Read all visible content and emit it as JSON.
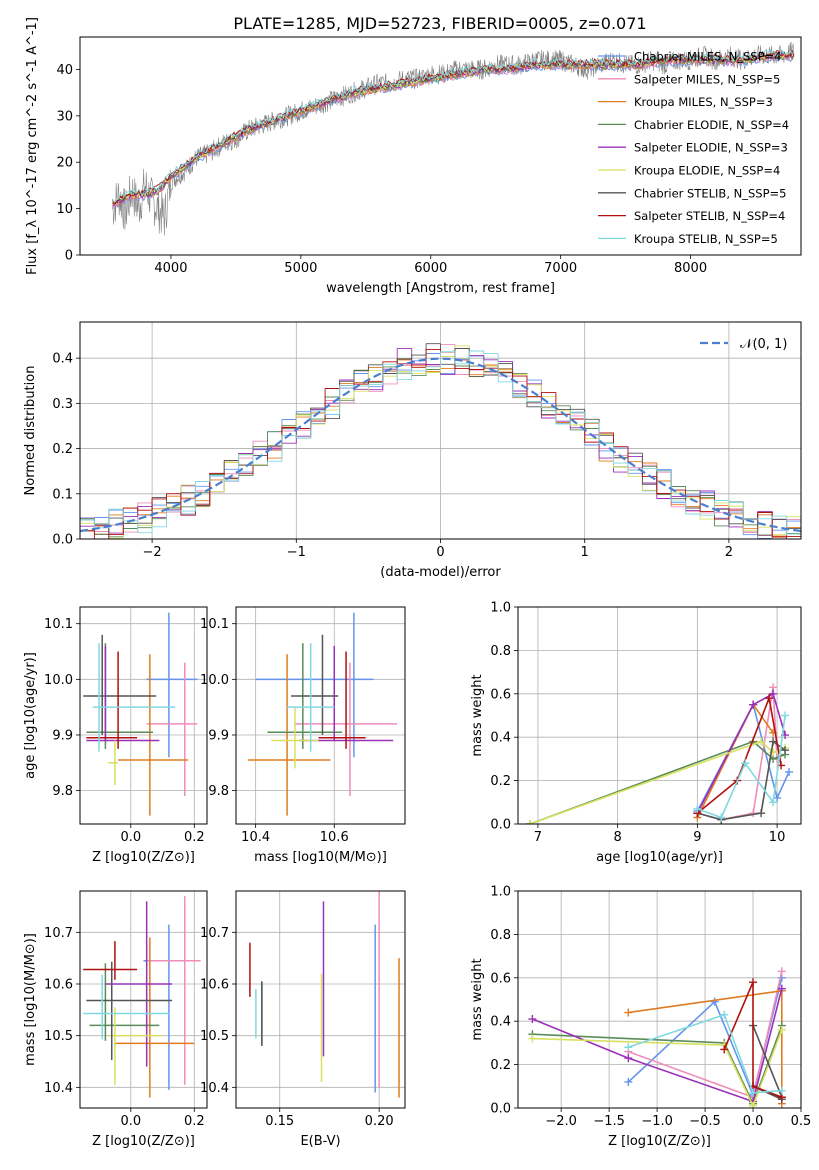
{
  "figure_title": "PLATE=1285, MJD=52723, FIBERID=0005, z=0.071",
  "series_colors": [
    "#6495ed",
    "#f08cba",
    "#e07b20",
    "#5a8c5a",
    "#9b30b8",
    "#d8e060",
    "#555555",
    "#b01010",
    "#80d8e0"
  ],
  "chart_data": [
    {
      "id": "spectrum",
      "type": "line",
      "xlabel": "wavelength [Angstrom, rest frame]",
      "ylabel": "Flux [f_λ 10^-17 erg cm^-2 s^-1 A^-1]",
      "xlim": [
        3300,
        8850
      ],
      "ylim": [
        0,
        47
      ],
      "xticks": [
        4000,
        5000,
        6000,
        7000,
        8000
      ],
      "yticks": [
        0,
        10,
        20,
        30,
        40
      ],
      "legend_position": "upper right",
      "legend": [
        {
          "label": "Chabrier MILES, N_SSP=4",
          "color": "#6495ed"
        },
        {
          "label": "Salpeter MILES, N_SSP=5",
          "color": "#f08cba"
        },
        {
          "label": "Kroupa MILES, N_SSP=3",
          "color": "#e07b20"
        },
        {
          "label": "Chabrier ELODIE, N_SSP=4",
          "color": "#5a8c5a"
        },
        {
          "label": "Salpeter ELODIE, N_SSP=3",
          "color": "#9b30b8"
        },
        {
          "label": "Kroupa ELODIE, N_SSP=4",
          "color": "#d8e060"
        },
        {
          "label": "Chabrier STELIB, N_SSP=5",
          "color": "#555555"
        },
        {
          "label": "Salpeter STELIB, N_SSP=4",
          "color": "#b01010"
        },
        {
          "label": "Kroupa STELIB, N_SSP=5",
          "color": "#80d8e0"
        }
      ],
      "observed": {
        "color": "#808080",
        "x": [
          3550,
          3600,
          3650,
          3700,
          3750,
          3800,
          3850,
          3900,
          3950,
          4000,
          4100,
          4200,
          4300,
          4400,
          4500,
          4600,
          4700,
          4800,
          4900,
          5000,
          5100,
          5200,
          5300,
          5400,
          5500,
          5600,
          5700,
          5800,
          5900,
          6000,
          6100,
          6200,
          6300,
          6400,
          6500,
          6600,
          6700,
          6800,
          6900,
          7000,
          7100,
          7200,
          7300,
          7400,
          7500,
          7600,
          7700,
          7800,
          7900,
          8000,
          8100,
          8200,
          8300,
          8400,
          8500,
          8600,
          8700,
          8800
        ],
        "y": [
          10,
          13,
          9,
          14,
          10,
          15,
          12,
          10,
          8,
          16,
          18,
          21,
          22,
          24,
          25,
          27,
          28,
          29,
          30,
          31,
          32,
          33,
          34,
          35,
          36,
          37,
          37,
          38,
          38,
          39,
          39,
          40,
          40,
          40,
          41,
          41,
          41,
          42,
          42,
          42,
          41,
          40,
          41,
          42,
          41,
          41,
          42,
          41,
          42,
          42,
          43,
          42,
          43,
          42,
          43,
          43,
          43,
          44
        ]
      },
      "model": {
        "x": [
          3550,
          3700,
          3800,
          3900,
          4000,
          4200,
          4400,
          4600,
          4800,
          5000,
          5200,
          5400,
          5600,
          5800,
          6000,
          6200,
          6400,
          6600,
          6800,
          7000,
          7200,
          7400,
          7600,
          7800,
          8000,
          8200,
          8400,
          8600,
          8800
        ],
        "y": [
          11,
          13,
          13,
          14,
          17,
          21,
          24,
          27,
          29,
          31,
          33,
          35,
          36,
          37,
          38,
          39,
          40,
          40,
          41,
          41,
          41,
          41,
          41,
          42,
          42,
          42,
          42,
          43,
          43
        ]
      }
    },
    {
      "id": "residual-histogram",
      "type": "line",
      "xlabel": "(data-model)/error",
      "ylabel": "Normed distribution",
      "xlim": [
        -2.5,
        2.5
      ],
      "ylim": [
        0,
        0.48
      ],
      "xticks": [
        -2,
        -1,
        0,
        1,
        2
      ],
      "yticks": [
        0.0,
        0.1,
        0.2,
        0.3,
        0.4
      ],
      "grid": true,
      "legend_position": "upper right",
      "gaussian_label": "𝒩(0, 1)",
      "gaussian_color": "#4a7fd0"
    },
    {
      "id": "age-vs-Z",
      "type": "scatter",
      "xlabel": "Z [log10(Z/Z⊙)]",
      "ylabel": "age  [log10(age/yr)]",
      "xlim": [
        -0.16,
        0.24
      ],
      "ylim": [
        9.74,
        10.13
      ],
      "xticks": [
        0.0,
        0.2
      ],
      "yticks": [
        9.8,
        9.9,
        10.0,
        10.1
      ],
      "grid": true,
      "points": [
        {
          "x": 0.12,
          "y": 10.0,
          "xerr": [
            0.07,
            0.09
          ],
          "yerr": [
            0.14,
            0.12
          ],
          "color": "#6495ed"
        },
        {
          "x": 0.17,
          "y": 9.92,
          "xerr": [
            0.12,
            0.04
          ],
          "yerr": [
            0.13,
            0.11
          ],
          "color": "#f08cba"
        },
        {
          "x": 0.06,
          "y": 9.855,
          "xerr": [
            0.1,
            0.12
          ],
          "yerr": [
            0.1,
            0.19
          ],
          "color": "#e07b20"
        },
        {
          "x": -0.08,
          "y": 9.905,
          "xerr": [
            0.06,
            0.15
          ],
          "yerr": [
            0.03,
            0.16
          ],
          "color": "#5a8c5a"
        },
        {
          "x": -0.08,
          "y": 9.89,
          "xerr": [
            0.06,
            0.17
          ],
          "yerr": [
            0.0,
            0.17
          ],
          "color": "#9b30b8"
        },
        {
          "x": -0.05,
          "y": 9.85,
          "xerr": [
            0.02,
            0.01
          ],
          "yerr": [
            0.04,
            0.04
          ],
          "color": "#d8e060"
        },
        {
          "x": -0.09,
          "y": 9.97,
          "xerr": [
            0.06,
            0.17
          ],
          "yerr": [
            0.07,
            0.11
          ],
          "color": "#555555"
        },
        {
          "x": -0.04,
          "y": 9.895,
          "xerr": [
            0.1,
            0.06
          ],
          "yerr": [
            0.02,
            0.155
          ],
          "color": "#b01010"
        },
        {
          "x": -0.1,
          "y": 9.95,
          "xerr": [
            0.02,
            0.24
          ],
          "yerr": [
            0.08,
            0.115
          ],
          "color": "#80d8e0"
        }
      ]
    },
    {
      "id": "age-vs-mass",
      "type": "scatter",
      "xlabel": "mass [log10(M/M⊙)]",
      "ylabel": "",
      "xlim": [
        10.35,
        10.78
      ],
      "ylim": [
        9.74,
        10.13
      ],
      "xticks": [
        10.4,
        10.6
      ],
      "yticks": [
        9.8,
        9.9,
        10.0,
        10.1
      ],
      "grid": true,
      "points": [
        {
          "x": 10.65,
          "y": 10.0,
          "xerr": [
            0.25,
            0.05
          ],
          "yerr": [
            0.14,
            0.12
          ],
          "color": "#6495ed"
        },
        {
          "x": 10.64,
          "y": 9.92,
          "xerr": [
            0.14,
            0.12
          ],
          "yerr": [
            0.13,
            0.11
          ],
          "color": "#f08cba"
        },
        {
          "x": 10.48,
          "y": 9.855,
          "xerr": [
            0.1,
            0.11
          ],
          "yerr": [
            0.1,
            0.19
          ],
          "color": "#e07b20"
        },
        {
          "x": 10.52,
          "y": 9.905,
          "xerr": [
            0.09,
            0.1
          ],
          "yerr": [
            0.03,
            0.16
          ],
          "color": "#5a8c5a"
        },
        {
          "x": 10.6,
          "y": 9.89,
          "xerr": [
            0.09,
            0.15
          ],
          "yerr": [
            0.0,
            0.17
          ],
          "color": "#9b30b8"
        },
        {
          "x": 10.5,
          "y": 9.89,
          "xerr": [
            0.06,
            0.06
          ],
          "yerr": [
            0.05,
            0.06
          ],
          "color": "#d8e060"
        },
        {
          "x": 10.57,
          "y": 9.97,
          "xerr": [
            0.08,
            0.04
          ],
          "yerr": [
            0.07,
            0.11
          ],
          "color": "#555555"
        },
        {
          "x": 10.63,
          "y": 9.895,
          "xerr": [
            0.07,
            0.05
          ],
          "yerr": [
            0.02,
            0.155
          ],
          "color": "#b01010"
        },
        {
          "x": 10.54,
          "y": 9.95,
          "xerr": [
            0.06,
            0.06
          ],
          "yerr": [
            0.08,
            0.115
          ],
          "color": "#80d8e0"
        }
      ]
    },
    {
      "id": "weight-vs-age",
      "type": "line",
      "xlabel": "age  [log10(age/yr)]",
      "ylabel": "mass weight",
      "xlim": [
        6.75,
        10.3
      ],
      "ylim": [
        0,
        1.0
      ],
      "xticks": [
        7,
        8,
        9,
        10
      ],
      "yticks": [
        0.0,
        0.2,
        0.4,
        0.6,
        0.8,
        1.0
      ],
      "grid": true,
      "series": [
        {
          "color": "#6495ed",
          "x": [
            9.0,
            9.7,
            10.0,
            10.15
          ],
          "y": [
            0.06,
            0.55,
            0.12,
            0.24
          ]
        },
        {
          "color": "#f08cba",
          "x": [
            9.0,
            9.3,
            9.7,
            9.95,
            10.0
          ],
          "y": [
            0.05,
            0.02,
            0.05,
            0.63,
            0.3
          ]
        },
        {
          "color": "#e07b20",
          "x": [
            9.0,
            9.7,
            9.95
          ],
          "y": [
            0.03,
            0.55,
            0.42
          ]
        },
        {
          "color": "#5a8c5a",
          "x": [
            6.9,
            9.7,
            9.95,
            10.1
          ],
          "y": [
            0.0,
            0.38,
            0.3,
            0.32
          ]
        },
        {
          "color": "#9b30b8",
          "x": [
            9.0,
            9.7,
            9.95,
            10.1
          ],
          "y": [
            0.05,
            0.55,
            0.6,
            0.41
          ]
        },
        {
          "color": "#d8e060",
          "x": [
            6.9,
            9.8,
            9.95,
            10.1
          ],
          "y": [
            0.0,
            0.38,
            0.33,
            0.35
          ]
        },
        {
          "color": "#555555",
          "x": [
            9.0,
            9.3,
            9.8,
            9.95,
            10.1
          ],
          "y": [
            0.05,
            0.02,
            0.05,
            0.38,
            0.34
          ]
        },
        {
          "color": "#b01010",
          "x": [
            9.0,
            9.5,
            9.9,
            10.05
          ],
          "y": [
            0.05,
            0.2,
            0.58,
            0.27
          ]
        },
        {
          "color": "#80d8e0",
          "x": [
            9.0,
            9.3,
            9.6,
            9.95,
            10.1
          ],
          "y": [
            0.07,
            0.03,
            0.28,
            0.1,
            0.5
          ]
        }
      ]
    },
    {
      "id": "mass-vs-Z",
      "type": "scatter",
      "xlabel": "Z [log10(Z/Z⊙)]",
      "ylabel": "mass [log10(M/M⊙)]",
      "xlim": [
        -0.16,
        0.24
      ],
      "ylim": [
        10.36,
        10.78
      ],
      "xticks": [
        0.0,
        0.2
      ],
      "yticks": [
        10.4,
        10.5,
        10.6,
        10.7
      ],
      "grid": true,
      "points": [
        {
          "x": 0.12,
          "y": 10.645,
          "xerr": [
            0.08,
            0.09
          ],
          "yerr": [
            0.25,
            0.07
          ],
          "color": "#6495ed"
        },
        {
          "x": 0.17,
          "y": 10.645,
          "xerr": [
            0.12,
            0.05
          ],
          "yerr": [
            0.24,
            0.125
          ],
          "color": "#f08cba"
        },
        {
          "x": 0.06,
          "y": 10.485,
          "xerr": [
            0.11,
            0.14
          ],
          "yerr": [
            0.105,
            0.205
          ],
          "color": "#e07b20"
        },
        {
          "x": -0.08,
          "y": 10.52,
          "xerr": [
            0.05,
            0.17
          ],
          "yerr": [
            0.03,
            0.12
          ],
          "color": "#5a8c5a"
        },
        {
          "x": 0.05,
          "y": 10.6,
          "xerr": [
            0.13,
            0.08
          ],
          "yerr": [
            0.16,
            0.16
          ],
          "color": "#9b30b8"
        },
        {
          "x": -0.05,
          "y": 10.5,
          "xerr": [
            0.02,
            0.15
          ],
          "yerr": [
            0.095,
            0.055
          ],
          "color": "#d8e060"
        },
        {
          "x": -0.06,
          "y": 10.568,
          "xerr": [
            0.08,
            0.19
          ],
          "yerr": [
            0.115,
            0.075
          ],
          "color": "#555555"
        },
        {
          "x": -0.05,
          "y": 10.628,
          "xerr": [
            0.1,
            0.07
          ],
          "yerr": [
            0.02,
            0.055
          ],
          "color": "#b01010"
        },
        {
          "x": -0.09,
          "y": 10.543,
          "xerr": [
            0.06,
            0.21
          ],
          "yerr": [
            0.05,
            0.075
          ],
          "color": "#80d8e0"
        }
      ]
    },
    {
      "id": "mass-vs-ebv",
      "type": "scatter",
      "xlabel": "E(B-V)",
      "ylabel": "",
      "xlim": [
        0.128,
        0.213
      ],
      "ylim": [
        10.36,
        10.78
      ],
      "xticks": [
        0.15,
        0.2
      ],
      "yticks": [
        10.4,
        10.5,
        10.6,
        10.7
      ],
      "grid": true,
      "points": [
        {
          "x": 0.198,
          "y": 10.55,
          "yerr": [
            0.16,
            0.165
          ],
          "color": "#6495ed"
        },
        {
          "x": 0.2,
          "y": 10.6,
          "yerr": [
            0.2,
            0.18
          ],
          "color": "#f08cba"
        },
        {
          "x": 0.21,
          "y": 10.52,
          "yerr": [
            0.14,
            0.13
          ],
          "color": "#e07b20"
        },
        {
          "x": 0.141,
          "y": 10.55,
          "yerr": [
            0.065,
            0.055
          ],
          "color": "#5a8c5a"
        },
        {
          "x": 0.172,
          "y": 10.6,
          "yerr": [
            0.14,
            0.16
          ],
          "color": "#9b30b8"
        },
        {
          "x": 0.171,
          "y": 10.5,
          "yerr": [
            0.09,
            0.12
          ],
          "color": "#d8e060"
        },
        {
          "x": 0.141,
          "y": 10.545,
          "yerr": [
            0.065,
            0.06
          ],
          "color": "#555555"
        },
        {
          "x": 0.135,
          "y": 10.625,
          "yerr": [
            0.05,
            0.055
          ],
          "color": "#b01010"
        },
        {
          "x": 0.138,
          "y": 10.545,
          "yerr": [
            0.05,
            0.045
          ],
          "color": "#80d8e0"
        }
      ]
    },
    {
      "id": "weight-vs-Z",
      "type": "line",
      "xlabel": "Z [log10(Z/Z⊙)]",
      "ylabel": "mass weight",
      "xlim": [
        -2.45,
        0.5
      ],
      "ylim": [
        0,
        1.0
      ],
      "xticks": [
        -2.0,
        -1.5,
        -1.0,
        -0.5,
        0.0,
        0.5
      ],
      "yticks": [
        0.0,
        0.2,
        0.4,
        0.6,
        0.8,
        1.0
      ],
      "grid": true,
      "series": [
        {
          "color": "#6495ed",
          "x": [
            -1.3,
            -0.4,
            0.0,
            0.3
          ],
          "y": [
            0.12,
            0.49,
            0.06,
            0.6
          ]
        },
        {
          "color": "#f08cba",
          "x": [
            -1.3,
            0.0,
            0.3
          ],
          "y": [
            0.26,
            0.05,
            0.63
          ]
        },
        {
          "color": "#e07b20",
          "x": [
            -1.3,
            0.3,
            0.3
          ],
          "y": [
            0.44,
            0.54,
            0.02
          ]
        },
        {
          "color": "#5a8c5a",
          "x": [
            -2.3,
            -0.3,
            0.0,
            0.3
          ],
          "y": [
            0.34,
            0.3,
            0.02,
            0.38
          ]
        },
        {
          "color": "#9b30b8",
          "x": [
            -2.3,
            -1.3,
            0.0,
            0.3
          ],
          "y": [
            0.41,
            0.23,
            0.03,
            0.55
          ]
        },
        {
          "color": "#d8e060",
          "x": [
            -2.3,
            -0.3,
            0.0,
            0.3
          ],
          "y": [
            0.32,
            0.29,
            0.01,
            0.36
          ]
        },
        {
          "color": "#555555",
          "x": [
            0.0,
            0.3,
            0.0,
            0.3
          ],
          "y": [
            0.38,
            0.05,
            0.1,
            0.04
          ]
        },
        {
          "color": "#b01010",
          "x": [
            -0.3,
            0.0,
            0.0,
            0.3
          ],
          "y": [
            0.27,
            0.58,
            0.1,
            0.05
          ]
        },
        {
          "color": "#80d8e0",
          "x": [
            -1.3,
            -0.3,
            0.0,
            0.3
          ],
          "y": [
            0.28,
            0.43,
            0.07,
            0.08
          ]
        }
      ]
    }
  ]
}
